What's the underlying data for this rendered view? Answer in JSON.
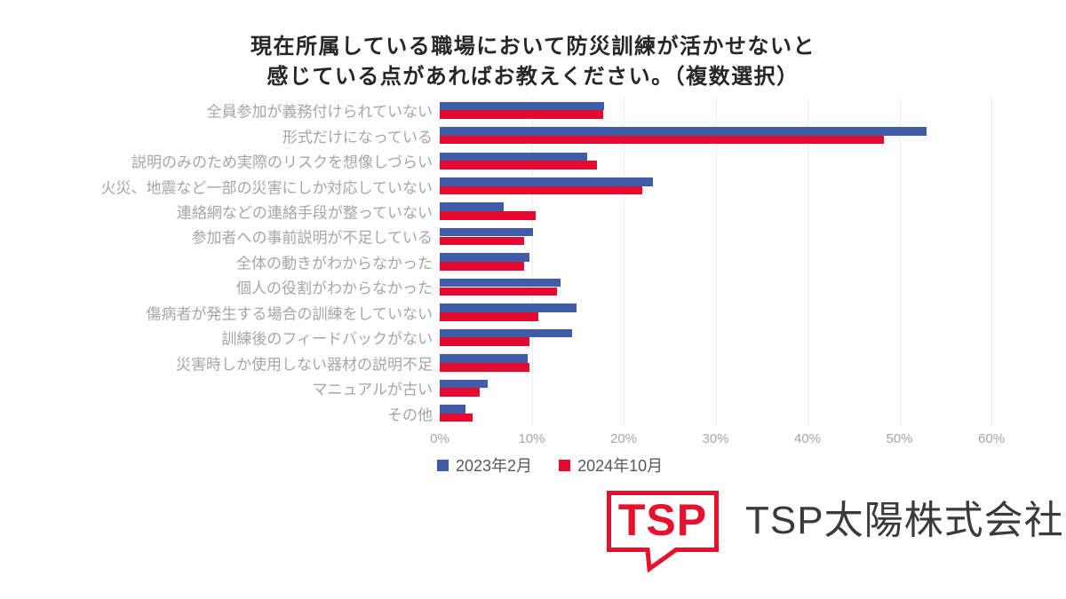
{
  "title": {
    "line1": "現在所属している職場において防災訓練が活かせないと",
    "line2": "感じている点があればお教えください。（複数選択）"
  },
  "chart_data": {
    "type": "bar",
    "orientation": "horizontal",
    "title": "現在所属している職場において防災訓練が活かせないと感じている点があればお教えください。（複数選択）",
    "categories": [
      "全員参加が義務付けられていない",
      "形式だけになっている",
      "説明のみのため実際のリスクを想像しづらい",
      "火災、地震など一部の災害にしか対応していない",
      "連絡網などの連絡手段が整っていない",
      "参加者への事前説明が不足している",
      "全体の動きがわからなかった",
      "個人の役割がわからなかった",
      "傷病者が発生する場合の訓練をしていない",
      "訓練後のフィードバックがない",
      "災害時しか使用しない器材の説明不足",
      "マニュアルが古い",
      "その他"
    ],
    "series": [
      {
        "name": "2023年2月",
        "color": "#3e5ca7",
        "values": [
          17.9,
          52.9,
          16.0,
          23.2,
          7.0,
          10.1,
          9.8,
          13.1,
          14.9,
          14.4,
          9.6,
          5.2,
          2.8
        ]
      },
      {
        "name": "2024年10月",
        "color": "#e60a2e",
        "values": [
          17.8,
          48.3,
          17.1,
          22.0,
          10.4,
          9.2,
          9.2,
          12.8,
          10.7,
          9.8,
          9.8,
          4.3,
          3.6
        ]
      }
    ],
    "xlabel": "",
    "ylabel": "",
    "x_ticks": [
      "0%",
      "10%",
      "20%",
      "30%",
      "40%",
      "50%",
      "60%"
    ],
    "xlim": [
      0,
      60
    ],
    "grid": true,
    "legend_position": "bottom-left"
  },
  "legend": {
    "items": [
      {
        "label": "2023年2月",
        "color": "#3e5ca7"
      },
      {
        "label": "2024年10月",
        "color": "#e60a2e"
      }
    ]
  },
  "logo": {
    "badge_text": "TSP",
    "company_name": "TSP太陽株式会社",
    "accent_color": "#e8112d",
    "company_text_color": "#3a3a3a"
  },
  "colors": {
    "background": "#ffffff",
    "title_text": "#262626",
    "category_label": "#a6a6a6",
    "tick_label": "#a6a6a6",
    "legend_text": "#595959",
    "gridline": "#ececec"
  }
}
